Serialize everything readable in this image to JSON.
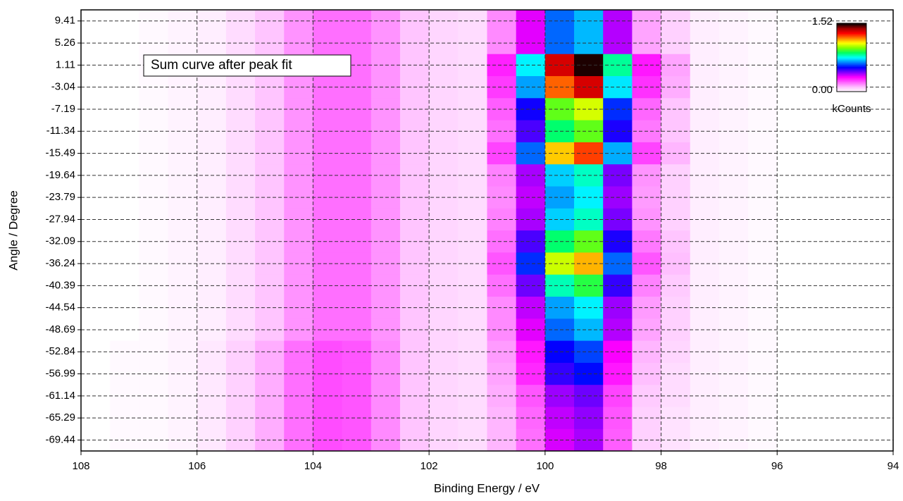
{
  "chart_data": {
    "type": "heatmap",
    "annotation": "Sum curve after peak fit",
    "xlabel": "Binding Energy / eV",
    "ylabel": "Angle / Degree",
    "xlim": [
      108,
      94
    ],
    "xticks": [
      108,
      106,
      104,
      102,
      100,
      98,
      96,
      94
    ],
    "ylim": [
      -71.5,
      11.5
    ],
    "yticks": [
      9.41,
      5.26,
      1.11,
      -3.04,
      -7.19,
      -11.34,
      -15.49,
      -19.64,
      -23.79,
      -27.94,
      -32.09,
      -36.24,
      -40.39,
      -44.54,
      -48.69,
      -52.84,
      -56.99,
      -61.14,
      -65.29,
      -69.44
    ],
    "grid": true,
    "x": [
      107.75,
      107.25,
      106.75,
      106.25,
      105.75,
      105.25,
      104.75,
      104.25,
      103.75,
      103.25,
      102.75,
      102.25,
      101.75,
      101.25,
      100.75,
      100.25,
      99.75,
      99.25,
      98.75,
      98.25,
      97.75,
      97.25,
      96.75,
      96.25,
      95.75,
      95.25,
      94.75,
      94.25
    ],
    "y": [
      9.41,
      5.26,
      1.11,
      -3.04,
      -7.19,
      -11.34,
      -15.49,
      -19.64,
      -23.79,
      -27.94,
      -32.09,
      -36.24,
      -40.39,
      -44.54,
      -48.69,
      -52.84,
      -56.99,
      -61.14,
      -65.29,
      -69.44
    ],
    "z": [
      [
        0,
        0,
        0.01,
        0.02,
        0.03,
        0.06,
        0.1,
        0.16,
        0.2,
        0.2,
        0.16,
        0.1,
        0.07,
        0.06,
        0.17,
        0.35,
        0.63,
        0.7,
        0.39,
        0.14,
        0.08,
        0.03,
        0.02,
        0.01,
        0,
        0,
        0,
        0
      ],
      [
        0,
        0,
        0.01,
        0.02,
        0.03,
        0.06,
        0.1,
        0.16,
        0.2,
        0.2,
        0.16,
        0.1,
        0.07,
        0.06,
        0.17,
        0.35,
        0.63,
        0.7,
        0.39,
        0.14,
        0.08,
        0.03,
        0.02,
        0.01,
        0,
        0,
        0,
        0
      ],
      [
        0,
        0,
        0.01,
        0.02,
        0.03,
        0.06,
        0.1,
        0.16,
        0.2,
        0.2,
        0.16,
        0.1,
        0.07,
        0.06,
        0.29,
        0.75,
        1.35,
        1.5,
        0.83,
        0.3,
        0.14,
        0.03,
        0.02,
        0.01,
        0,
        0,
        0,
        0
      ],
      [
        0,
        0,
        0.01,
        0.02,
        0.03,
        0.06,
        0.1,
        0.16,
        0.2,
        0.2,
        0.16,
        0.1,
        0.07,
        0.06,
        0.26,
        0.68,
        1.22,
        1.35,
        0.74,
        0.27,
        0.13,
        0.03,
        0.02,
        0.01,
        0,
        0,
        0,
        0
      ],
      [
        0,
        0,
        0.01,
        0.02,
        0.03,
        0.06,
        0.1,
        0.16,
        0.2,
        0.2,
        0.16,
        0.1,
        0.07,
        0.06,
        0.22,
        0.53,
        0.95,
        1.05,
        0.58,
        0.21,
        0.1,
        0.03,
        0.02,
        0.01,
        0,
        0,
        0,
        0
      ],
      [
        0,
        0,
        0.01,
        0.02,
        0.03,
        0.06,
        0.1,
        0.16,
        0.2,
        0.2,
        0.16,
        0.1,
        0.07,
        0.06,
        0.2,
        0.48,
        0.86,
        0.95,
        0.52,
        0.19,
        0.1,
        0.03,
        0.02,
        0.01,
        0,
        0,
        0,
        0
      ],
      [
        0,
        0,
        0.01,
        0.02,
        0.03,
        0.06,
        0.1,
        0.16,
        0.2,
        0.2,
        0.16,
        0.1,
        0.07,
        0.06,
        0.25,
        0.63,
        1.13,
        1.25,
        0.69,
        0.25,
        0.12,
        0.03,
        0.02,
        0.01,
        0,
        0,
        0,
        0
      ],
      [
        0,
        0,
        0.01,
        0.02,
        0.03,
        0.06,
        0.1,
        0.16,
        0.2,
        0.2,
        0.16,
        0.1,
        0.07,
        0.06,
        0.18,
        0.4,
        0.72,
        0.8,
        0.44,
        0.16,
        0.08,
        0.03,
        0.02,
        0.01,
        0,
        0,
        0,
        0
      ],
      [
        0,
        0,
        0.01,
        0.02,
        0.03,
        0.06,
        0.1,
        0.16,
        0.2,
        0.2,
        0.16,
        0.1,
        0.07,
        0.06,
        0.17,
        0.38,
        0.68,
        0.75,
        0.41,
        0.15,
        0.08,
        0.03,
        0.02,
        0.01,
        0,
        0,
        0,
        0
      ],
      [
        0,
        0,
        0.01,
        0.02,
        0.03,
        0.06,
        0.1,
        0.16,
        0.2,
        0.2,
        0.16,
        0.1,
        0.07,
        0.06,
        0.18,
        0.4,
        0.72,
        0.8,
        0.44,
        0.16,
        0.08,
        0.03,
        0.02,
        0.01,
        0,
        0,
        0,
        0
      ],
      [
        0,
        0,
        0.01,
        0.02,
        0.03,
        0.06,
        0.1,
        0.16,
        0.2,
        0.2,
        0.16,
        0.1,
        0.07,
        0.06,
        0.2,
        0.48,
        0.86,
        0.95,
        0.52,
        0.19,
        0.1,
        0.03,
        0.02,
        0.01,
        0,
        0,
        0,
        0
      ],
      [
        0,
        0,
        0.01,
        0.02,
        0.03,
        0.06,
        0.1,
        0.16,
        0.2,
        0.2,
        0.16,
        0.1,
        0.07,
        0.06,
        0.23,
        0.58,
        1.04,
        1.15,
        0.63,
        0.23,
        0.11,
        0.03,
        0.02,
        0.01,
        0,
        0,
        0,
        0
      ],
      [
        0,
        0,
        0.01,
        0.02,
        0.03,
        0.06,
        0.1,
        0.16,
        0.2,
        0.2,
        0.16,
        0.1,
        0.07,
        0.06,
        0.2,
        0.45,
        0.81,
        0.9,
        0.5,
        0.18,
        0.09,
        0.03,
        0.02,
        0.01,
        0,
        0,
        0,
        0
      ],
      [
        0,
        0,
        0.01,
        0.02,
        0.03,
        0.06,
        0.1,
        0.16,
        0.2,
        0.2,
        0.16,
        0.1,
        0.07,
        0.06,
        0.17,
        0.38,
        0.68,
        0.75,
        0.41,
        0.15,
        0.08,
        0.03,
        0.02,
        0.01,
        0,
        0,
        0,
        0
      ],
      [
        0,
        0,
        0.01,
        0.02,
        0.03,
        0.06,
        0.1,
        0.16,
        0.2,
        0.2,
        0.16,
        0.1,
        0.07,
        0.06,
        0.17,
        0.35,
        0.63,
        0.7,
        0.39,
        0.14,
        0.08,
        0.03,
        0.02,
        0.01,
        0,
        0,
        0,
        0
      ],
      [
        0,
        0.01,
        0.01,
        0.02,
        0.04,
        0.08,
        0.13,
        0.2,
        0.24,
        0.23,
        0.17,
        0.1,
        0.07,
        0.06,
        0.15,
        0.3,
        0.54,
        0.6,
        0.33,
        0.12,
        0.07,
        0.03,
        0.02,
        0.01,
        0,
        0,
        0,
        0
      ],
      [
        0,
        0.01,
        0.01,
        0.02,
        0.04,
        0.08,
        0.13,
        0.2,
        0.24,
        0.23,
        0.17,
        0.1,
        0.07,
        0.06,
        0.14,
        0.28,
        0.5,
        0.55,
        0.3,
        0.11,
        0.06,
        0.03,
        0.02,
        0.01,
        0,
        0,
        0,
        0
      ],
      [
        0,
        0.01,
        0.01,
        0.02,
        0.04,
        0.08,
        0.13,
        0.2,
        0.24,
        0.23,
        0.17,
        0.1,
        0.07,
        0.06,
        0.13,
        0.23,
        0.41,
        0.45,
        0.25,
        0.09,
        0.06,
        0.03,
        0.02,
        0.01,
        0,
        0,
        0,
        0
      ],
      [
        0,
        0.01,
        0.01,
        0.02,
        0.04,
        0.08,
        0.13,
        0.2,
        0.24,
        0.23,
        0.17,
        0.1,
        0.07,
        0.06,
        0.12,
        0.21,
        0.38,
        0.42,
        0.23,
        0.08,
        0.05,
        0.03,
        0.02,
        0.01,
        0,
        0,
        0,
        0
      ],
      [
        0,
        0.01,
        0.01,
        0.02,
        0.04,
        0.08,
        0.13,
        0.2,
        0.24,
        0.23,
        0.17,
        0.1,
        0.07,
        0.06,
        0.12,
        0.2,
        0.36,
        0.4,
        0.22,
        0.08,
        0.05,
        0.03,
        0.02,
        0.01,
        0,
        0,
        0,
        0
      ]
    ],
    "zlim": [
      0,
      1.52
    ],
    "zticks": [
      {
        "value": 0,
        "label": "0.00"
      },
      1.52
    ],
    "zlabel": "kCounts",
    "colorscale": [
      "#ffffff",
      "#ffc0ff",
      "#ff60ff",
      "#ff00ff",
      "#8000ff",
      "#0000ff",
      "#0080ff",
      "#00ffff",
      "#00ff60",
      "#80ff00",
      "#ffff00",
      "#ff8000",
      "#ff0000",
      "#a00000",
      "#000000"
    ]
  }
}
